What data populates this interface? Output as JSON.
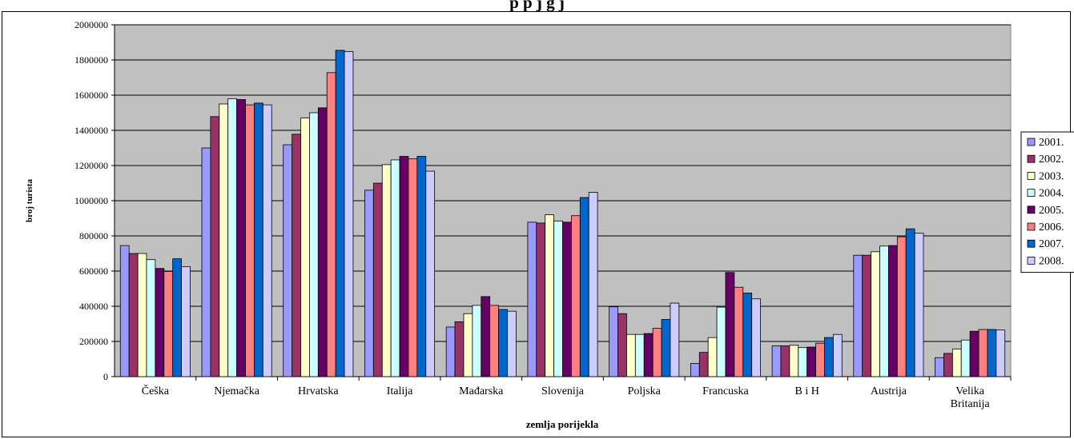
{
  "chart_data": {
    "type": "bar",
    "title": "p                                              p                j                                        g                                           j",
    "xlabel": "zemlja porijekla",
    "ylabel": "broj turista",
    "ylim": [
      0,
      2000000
    ],
    "yticks": [
      0,
      200000,
      400000,
      600000,
      800000,
      1000000,
      1200000,
      1400000,
      1600000,
      1800000,
      2000000
    ],
    "grid": true,
    "legend_position": "right",
    "plot_background": "#c0c0c0",
    "categories": [
      [
        "Češka"
      ],
      [
        "Njemačka"
      ],
      [
        "Hrvatska"
      ],
      [
        "Italija"
      ],
      [
        "Mađarska"
      ],
      [
        "Slovenija"
      ],
      [
        "Poljska"
      ],
      [
        "Francuska"
      ],
      [
        "B i H"
      ],
      [
        "Austrija"
      ],
      [
        "Velika",
        "Britanija"
      ]
    ],
    "series": [
      {
        "name": "2001.",
        "color": "#9999ff",
        "values": [
          745000,
          1300000,
          1318000,
          1060000,
          282000,
          878000,
          397000,
          75000,
          175000,
          690000,
          108000
        ]
      },
      {
        "name": "2002.",
        "color": "#993366",
        "values": [
          700000,
          1478000,
          1378000,
          1100000,
          312000,
          873000,
          358000,
          138000,
          175000,
          690000,
          132000
        ]
      },
      {
        "name": "2003.",
        "color": "#ffffcc",
        "values": [
          700000,
          1550000,
          1470000,
          1205000,
          358000,
          920000,
          240000,
          222000,
          178000,
          710000,
          157000
        ]
      },
      {
        "name": "2004.",
        "color": "#ccffff",
        "values": [
          665000,
          1580000,
          1500000,
          1232000,
          405000,
          885000,
          240000,
          395000,
          165000,
          742000,
          208000
        ]
      },
      {
        "name": "2005.",
        "color": "#660066",
        "values": [
          615000,
          1575000,
          1528000,
          1252000,
          455000,
          878000,
          245000,
          592000,
          168000,
          745000,
          258000
        ]
      },
      {
        "name": "2006.",
        "color": "#ff8080",
        "values": [
          598000,
          1545000,
          1728000,
          1238000,
          405000,
          915000,
          275000,
          508000,
          190000,
          795000,
          268000
        ]
      },
      {
        "name": "2007.",
        "color": "#0066cc",
        "values": [
          670000,
          1555000,
          1855000,
          1252000,
          382000,
          1018000,
          325000,
          475000,
          222000,
          840000,
          268000
        ]
      },
      {
        "name": "2008.",
        "color": "#ccccff",
        "values": [
          625000,
          1545000,
          1848000,
          1168000,
          372000,
          1048000,
          418000,
          442000,
          240000,
          815000,
          265000
        ]
      }
    ]
  }
}
